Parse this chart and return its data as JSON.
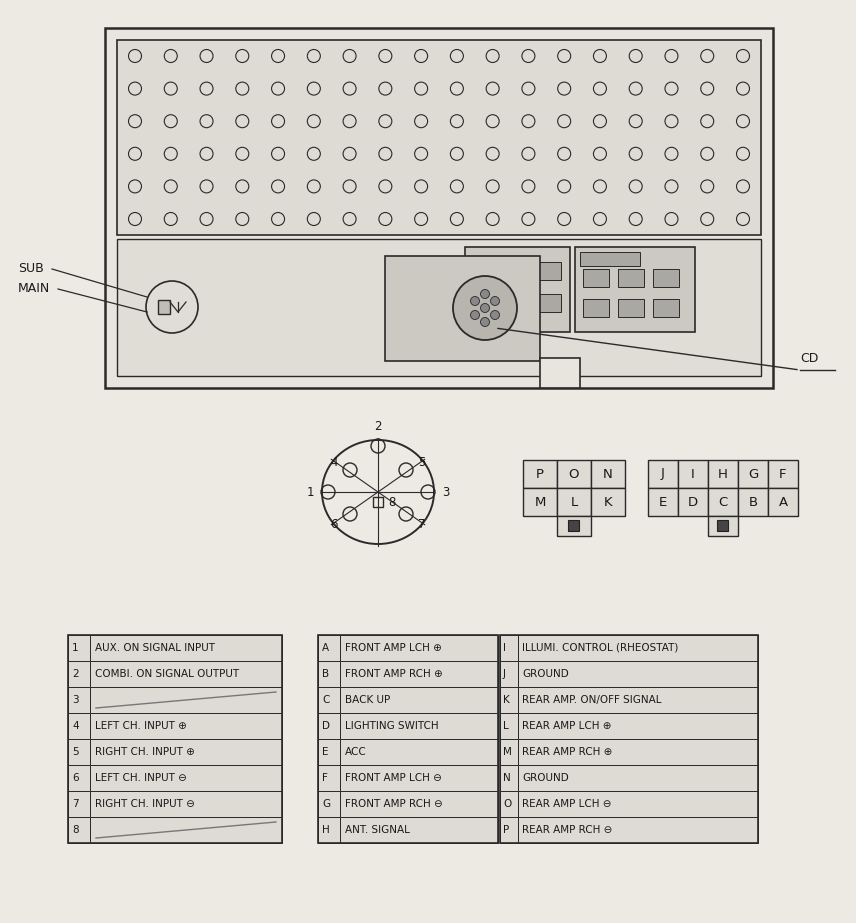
{
  "bg_color": "#edeae4",
  "line_color": "#2a2a2a",
  "text_color": "#1a1a1a",
  "table1_rows": [
    [
      "1",
      "AUX. ON SIGNAL INPUT"
    ],
    [
      "2",
      "COMBI. ON SIGNAL OUTPUT"
    ],
    [
      "3",
      ""
    ],
    [
      "4",
      "LEFT CH. INPUT ⊕"
    ],
    [
      "5",
      "RIGHT CH. INPUT ⊕"
    ],
    [
      "6",
      "LEFT CH. INPUT ⊖"
    ],
    [
      "7",
      "RIGHT CH. INPUT ⊖"
    ],
    [
      "8",
      ""
    ]
  ],
  "table2_rows": [
    [
      "A",
      "FRONT AMP LCH ⊕"
    ],
    [
      "B",
      "FRONT AMP RCH ⊕"
    ],
    [
      "C",
      "BACK UP"
    ],
    [
      "D",
      "LIGHTING SWITCH"
    ],
    [
      "E",
      "ACC"
    ],
    [
      "F",
      "FRONT AMP LCH ⊖"
    ],
    [
      "G",
      "FRONT AMP RCH ⊖"
    ],
    [
      "H",
      "ANT. SIGNAL"
    ]
  ],
  "table3_rows": [
    [
      "I",
      "ILLUMI. CONTROL (RHEOSTAT)"
    ],
    [
      "J",
      "GROUND"
    ],
    [
      "K",
      "REAR AMP. ON/OFF SIGNAL"
    ],
    [
      "L",
      "REAR AMP LCH ⊕"
    ],
    [
      "M",
      "REAR AMP RCH ⊕"
    ],
    [
      "N",
      "GROUND"
    ],
    [
      "O",
      "REAR AMP LCH ⊖"
    ],
    [
      "P",
      "REAR AMP RCH ⊖"
    ]
  ],
  "connector_top_row": [
    "P",
    "O",
    "N"
  ],
  "connector_bot_row": [
    "M",
    "L",
    "K"
  ],
  "connector2_top_row": [
    "J",
    "I",
    "H",
    "G",
    "F"
  ],
  "connector2_bot_row": [
    "E",
    "D",
    "C",
    "B",
    "A"
  ]
}
